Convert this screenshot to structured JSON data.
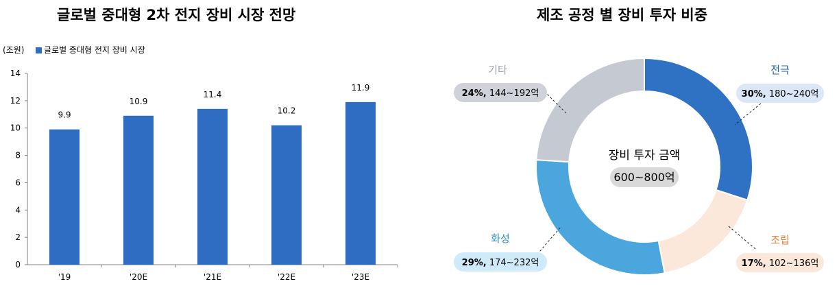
{
  "chart_data": [
    {
      "type": "bar",
      "title": "글로벌 중대형 2차 전지 장비 시장 전망",
      "unit_label": "(조원)",
      "legend": "글로벌 중대형 전지 장비 시장",
      "categories": [
        "'19",
        "'20E",
        "'21E",
        "'22E",
        "'23E"
      ],
      "values": [
        9.9,
        10.9,
        11.4,
        10.2,
        11.9
      ],
      "value_labels": [
        "9.9",
        "10.9",
        "11.4",
        "10.2",
        "11.9"
      ],
      "yticks": [
        "0",
        "2",
        "4",
        "6",
        "8",
        "10",
        "12",
        "14"
      ],
      "ylim": [
        0,
        14
      ],
      "grid": false,
      "legend_position": "top-left",
      "color": "#2f6dc2"
    },
    {
      "type": "pie",
      "title": "제조 공정 별 장비 투자 비중",
      "center_label": "장비 투자 금액",
      "center_value": "600~800억",
      "slices": [
        {
          "name": "전극",
          "percent": 30,
          "pct_label": "30%,",
          "range": "180~240억",
          "color": "#2f72c4",
          "pill": "#dbe6f7"
        },
        {
          "name": "조립",
          "percent": 17,
          "pct_label": "17%,",
          "range": "102~136억",
          "color": "#fbe8da",
          "pill": "#fbe8da"
        },
        {
          "name": "화성",
          "percent": 29,
          "pct_label": "29%,",
          "range": "174~232억",
          "color": "#4aa6dc",
          "pill": "#cfeaf8"
        },
        {
          "name": "기타",
          "percent": 24,
          "pct_label": "24%,",
          "range": "144~192억",
          "color": "#c5c9d2",
          "pill": "#cfd2d8"
        }
      ],
      "name_colors": {
        "전극": "#1f5fae",
        "조립": "#e8803a",
        "화성": "#2f8fcf",
        "기타": "#9aa0a8"
      }
    }
  ]
}
